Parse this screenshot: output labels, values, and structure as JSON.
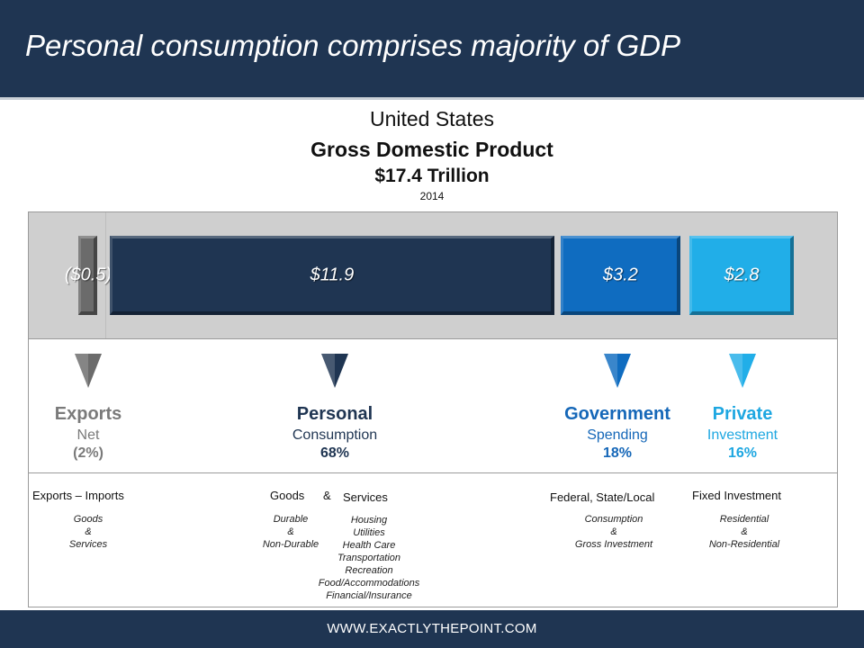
{
  "header": {
    "title": "Personal consumption comprises majority of GDP"
  },
  "footer": {
    "url": "WWW.EXACTLYTHEPOINT.COM"
  },
  "chart_data": {
    "type": "bar",
    "title": "Gross Domestic Product",
    "country": "United States",
    "total_label": "$17.4 Trillion",
    "year": "2014",
    "unit": "$ Trillion",
    "categories": [
      "Exports",
      "Personal",
      "Government",
      "Private"
    ],
    "values": [
      -0.5,
      11.9,
      3.2,
      2.8
    ],
    "value_labels": [
      "($0.5)",
      "$11.9",
      "$3.2",
      "$2.8"
    ],
    "colors": [
      "#6b6b6b",
      "#1f3552",
      "#0f6cc0",
      "#21aee8"
    ],
    "segments": [
      {
        "title": "Exports",
        "subtitle": "Net",
        "percent": "(2%)",
        "color": "#7a7a7a",
        "sub_heading": "Exports – Imports",
        "details": [
          "Goods",
          "&",
          "Services"
        ]
      },
      {
        "title": "Personal",
        "subtitle": "Consumption",
        "percent": "68%",
        "color": "#1f3552",
        "sub_heading_left": "Goods",
        "sub_heading_amp": "&",
        "sub_heading_right": "Services",
        "details_left": [
          "Durable",
          "&",
          "Non-Durable"
        ],
        "details_right": [
          "Housing",
          "Utilities",
          "Health Care",
          "Transportation",
          "Recreation",
          "Food/Accommodations",
          "Financial/Insurance"
        ]
      },
      {
        "title": "Government",
        "subtitle": "Spending",
        "percent": "18%",
        "color": "#1567b8",
        "sub_heading": "Federal, State/Local",
        "details": [
          "Consumption",
          "&",
          "Gross Investment"
        ]
      },
      {
        "title": "Private",
        "subtitle": "Investment",
        "percent": "16%",
        "color": "#1ea7e1",
        "sub_heading": "Fixed Investment",
        "details": [
          "Residential",
          "&",
          "Non-Residential"
        ]
      }
    ]
  }
}
